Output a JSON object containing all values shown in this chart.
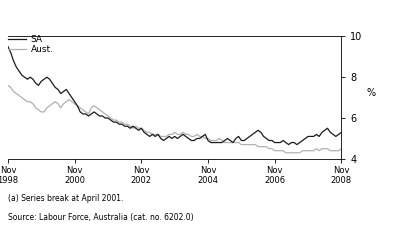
{
  "ylabel": "%",
  "ylim": [
    4,
    10
  ],
  "yticks": [
    4,
    6,
    8,
    10
  ],
  "xtick_labels": [
    "Nov\n1998",
    "Nov\n2000",
    "Nov\n2002",
    "Nov\n2004",
    "Nov\n2006",
    "Nov\n2008"
  ],
  "xtick_positions": [
    0,
    24,
    48,
    72,
    96,
    120
  ],
  "footnote": "(a) Series break at April 2001.",
  "source": "Source: Labour Force, Australia (cat. no. 6202.0)",
  "legend_sa": "SA",
  "legend_aust": "Aust.",
  "sa_color": "#1a1a1a",
  "aust_color": "#b0b0b0",
  "sa_data": [
    9.5,
    9.2,
    8.8,
    8.5,
    8.3,
    8.1,
    8.0,
    7.9,
    8.0,
    7.9,
    7.7,
    7.6,
    7.8,
    7.9,
    8.0,
    7.9,
    7.7,
    7.5,
    7.4,
    7.2,
    7.3,
    7.4,
    7.2,
    7.0,
    6.8,
    6.6,
    6.3,
    6.2,
    6.2,
    6.1,
    6.2,
    6.3,
    6.2,
    6.1,
    6.1,
    6.0,
    6.0,
    5.9,
    5.8,
    5.8,
    5.7,
    5.7,
    5.6,
    5.6,
    5.5,
    5.6,
    5.5,
    5.4,
    5.5,
    5.3,
    5.2,
    5.1,
    5.2,
    5.1,
    5.2,
    5.0,
    4.9,
    5.0,
    5.1,
    5.0,
    5.1,
    5.0,
    5.1,
    5.2,
    5.1,
    5.0,
    4.9,
    4.9,
    5.0,
    5.0,
    5.1,
    5.2,
    4.9,
    4.8,
    4.8,
    4.8,
    4.8,
    4.8,
    4.9,
    5.0,
    4.9,
    4.8,
    5.0,
    5.1,
    4.9,
    4.9,
    5.0,
    5.1,
    5.2,
    5.3,
    5.4,
    5.3,
    5.1,
    5.0,
    4.9,
    4.9,
    4.8,
    4.8,
    4.8,
    4.9,
    4.8,
    4.7,
    4.8,
    4.8,
    4.7,
    4.8,
    4.9,
    5.0,
    5.1,
    5.1,
    5.1,
    5.2,
    5.1,
    5.3,
    5.4,
    5.5,
    5.3,
    5.2,
    5.1,
    5.2,
    5.3
  ],
  "aust_data": [
    7.6,
    7.5,
    7.3,
    7.2,
    7.1,
    7.0,
    6.9,
    6.8,
    6.8,
    6.7,
    6.5,
    6.4,
    6.3,
    6.3,
    6.5,
    6.6,
    6.7,
    6.8,
    6.7,
    6.5,
    6.7,
    6.8,
    6.9,
    6.8,
    6.7,
    6.6,
    6.5,
    6.4,
    6.3,
    6.2,
    6.5,
    6.6,
    6.5,
    6.4,
    6.3,
    6.2,
    6.1,
    6.0,
    5.9,
    5.9,
    5.8,
    5.8,
    5.7,
    5.7,
    5.6,
    5.5,
    5.6,
    5.5,
    5.5,
    5.4,
    5.3,
    5.3,
    5.2,
    5.2,
    5.2,
    5.1,
    5.1,
    5.1,
    5.2,
    5.2,
    5.3,
    5.2,
    5.2,
    5.3,
    5.2,
    5.2,
    5.1,
    5.1,
    5.2,
    5.1,
    5.1,
    5.0,
    5.0,
    4.9,
    4.9,
    4.9,
    5.0,
    4.9,
    4.8,
    4.8,
    4.8,
    4.8,
    4.8,
    4.8,
    4.7,
    4.7,
    4.7,
    4.7,
    4.7,
    4.7,
    4.6,
    4.6,
    4.6,
    4.6,
    4.5,
    4.5,
    4.4,
    4.4,
    4.4,
    4.4,
    4.3,
    4.3,
    4.3,
    4.3,
    4.3,
    4.3,
    4.4,
    4.4,
    4.4,
    4.4,
    4.4,
    4.5,
    4.4,
    4.5,
    4.5,
    4.5,
    4.4,
    4.4,
    4.4,
    4.4,
    4.5
  ]
}
